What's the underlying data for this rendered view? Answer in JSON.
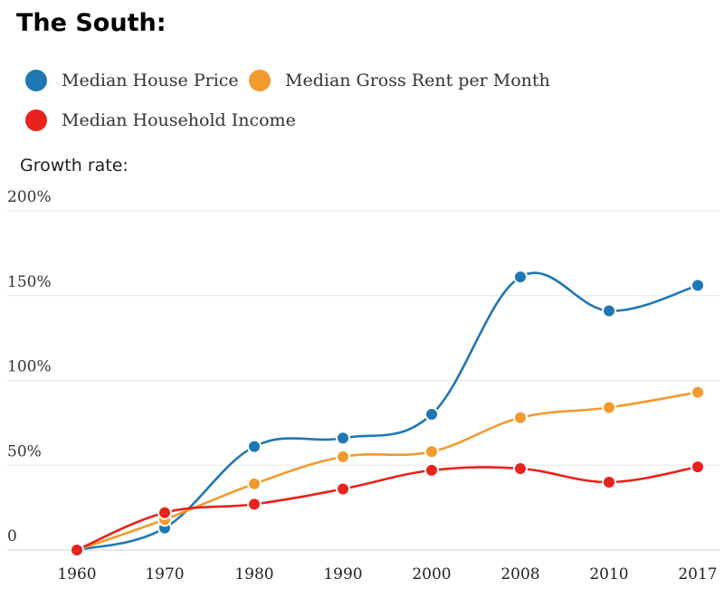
{
  "title": "The South:",
  "chart_data": {
    "type": "line",
    "title": "The South:",
    "ylabel": "Growth rate:",
    "xlabel": "",
    "categories": [
      "1960",
      "1970",
      "1980",
      "1990",
      "2000",
      "2008",
      "2010",
      "2017"
    ],
    "yticks": [
      "0",
      "50%",
      "100%",
      "150%",
      "200%"
    ],
    "ylim": [
      0,
      200
    ],
    "grid": true,
    "legend_position": "top-left",
    "series": [
      {
        "name": "Median House Price",
        "color": "#1f77b4",
        "values": [
          0,
          13,
          61,
          66,
          80,
          161,
          141,
          156
        ]
      },
      {
        "name": "Median Gross Rent per Month",
        "color": "#f39a2e",
        "values": [
          0,
          18,
          39,
          55,
          58,
          78,
          84,
          93
        ]
      },
      {
        "name": "Median Household Income",
        "color": "#e8221c",
        "values": [
          0,
          22,
          27,
          36,
          47,
          48,
          40,
          49
        ]
      }
    ]
  }
}
